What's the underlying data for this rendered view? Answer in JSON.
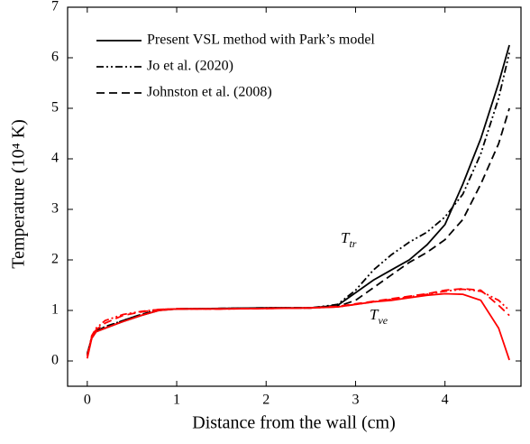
{
  "chart_data": {
    "type": "line",
    "xlabel": "Distance from the wall (cm)",
    "ylabel": "Temperature (10⁴ K)",
    "annotations": [
      {
        "text": "T",
        "subscript": "tr"
      },
      {
        "text": "T",
        "subscript": "ve",
        "color": "#ff0000"
      }
    ],
    "x": [
      0,
      0.05,
      0.1,
      0.2,
      0.4,
      0.6,
      0.8,
      1,
      1.5,
      2,
      2.5,
      2.8,
      3,
      3.2,
      3.4,
      3.6,
      3.8,
      4,
      4.2,
      4.4,
      4.6,
      4.72
    ],
    "series": [
      {
        "name": "Present VSL method with Park’s model",
        "label_color": "#1a1adf",
        "color": "#000000",
        "dash": "solid",
        "values": [
          0.15,
          0.45,
          0.58,
          0.65,
          0.78,
          0.9,
          1.0,
          1.03,
          1.04,
          1.05,
          1.05,
          1.1,
          1.35,
          1.6,
          1.8,
          2.0,
          2.3,
          2.7,
          3.5,
          4.4,
          5.5,
          6.25
        ]
      },
      {
        "name": "Jo et al. (2020)",
        "label_color": "#000000",
        "color": "#000000",
        "dash": "dashdotdot",
        "values": [
          0.12,
          0.47,
          0.6,
          0.68,
          0.8,
          0.92,
          1.01,
          1.03,
          1.04,
          1.05,
          1.05,
          1.12,
          1.4,
          1.8,
          2.1,
          2.35,
          2.55,
          2.85,
          3.3,
          4.1,
          5.2,
          6.1
        ]
      },
      {
        "name": "Johnston et al. (2008)",
        "label_color": "#000000",
        "color": "#000000",
        "dash": "dashed",
        "values": [
          0.12,
          0.46,
          0.6,
          0.67,
          0.8,
          0.92,
          1.01,
          1.03,
          1.04,
          1.05,
          1.05,
          1.08,
          1.2,
          1.45,
          1.7,
          1.95,
          2.15,
          2.4,
          2.8,
          3.5,
          4.3,
          5.0
        ]
      },
      {
        "color": "#ff0000",
        "dash": "solid",
        "values": [
          0.05,
          0.45,
          0.58,
          0.65,
          0.78,
          0.9,
          1.0,
          1.03,
          1.03,
          1.04,
          1.05,
          1.07,
          1.12,
          1.17,
          1.2,
          1.25,
          1.3,
          1.33,
          1.32,
          1.2,
          0.65,
          0.02
        ]
      },
      {
        "color": "#ff0000",
        "dash": "dashdotdot",
        "values": [
          0.1,
          0.5,
          0.65,
          0.8,
          0.92,
          0.98,
          1.02,
          1.03,
          1.03,
          1.04,
          1.05,
          1.07,
          1.12,
          1.17,
          1.22,
          1.27,
          1.32,
          1.38,
          1.42,
          1.38,
          1.2,
          1.0
        ]
      },
      {
        "color": "#ff0000",
        "dash": "dashed",
        "values": [
          0.1,
          0.48,
          0.62,
          0.75,
          0.9,
          0.97,
          1.02,
          1.03,
          1.03,
          1.04,
          1.05,
          1.08,
          1.13,
          1.18,
          1.23,
          1.28,
          1.33,
          1.4,
          1.43,
          1.4,
          1.1,
          0.9
        ]
      }
    ],
    "xlim": [
      -0.22,
      4.85
    ],
    "xticks": [
      0,
      1,
      2,
      3,
      4,
      5
    ],
    "ylim": [
      -0.5,
      7
    ],
    "yticks": [
      0,
      1,
      2,
      3,
      4,
      5,
      6,
      7
    ],
    "legend": "upper left"
  }
}
